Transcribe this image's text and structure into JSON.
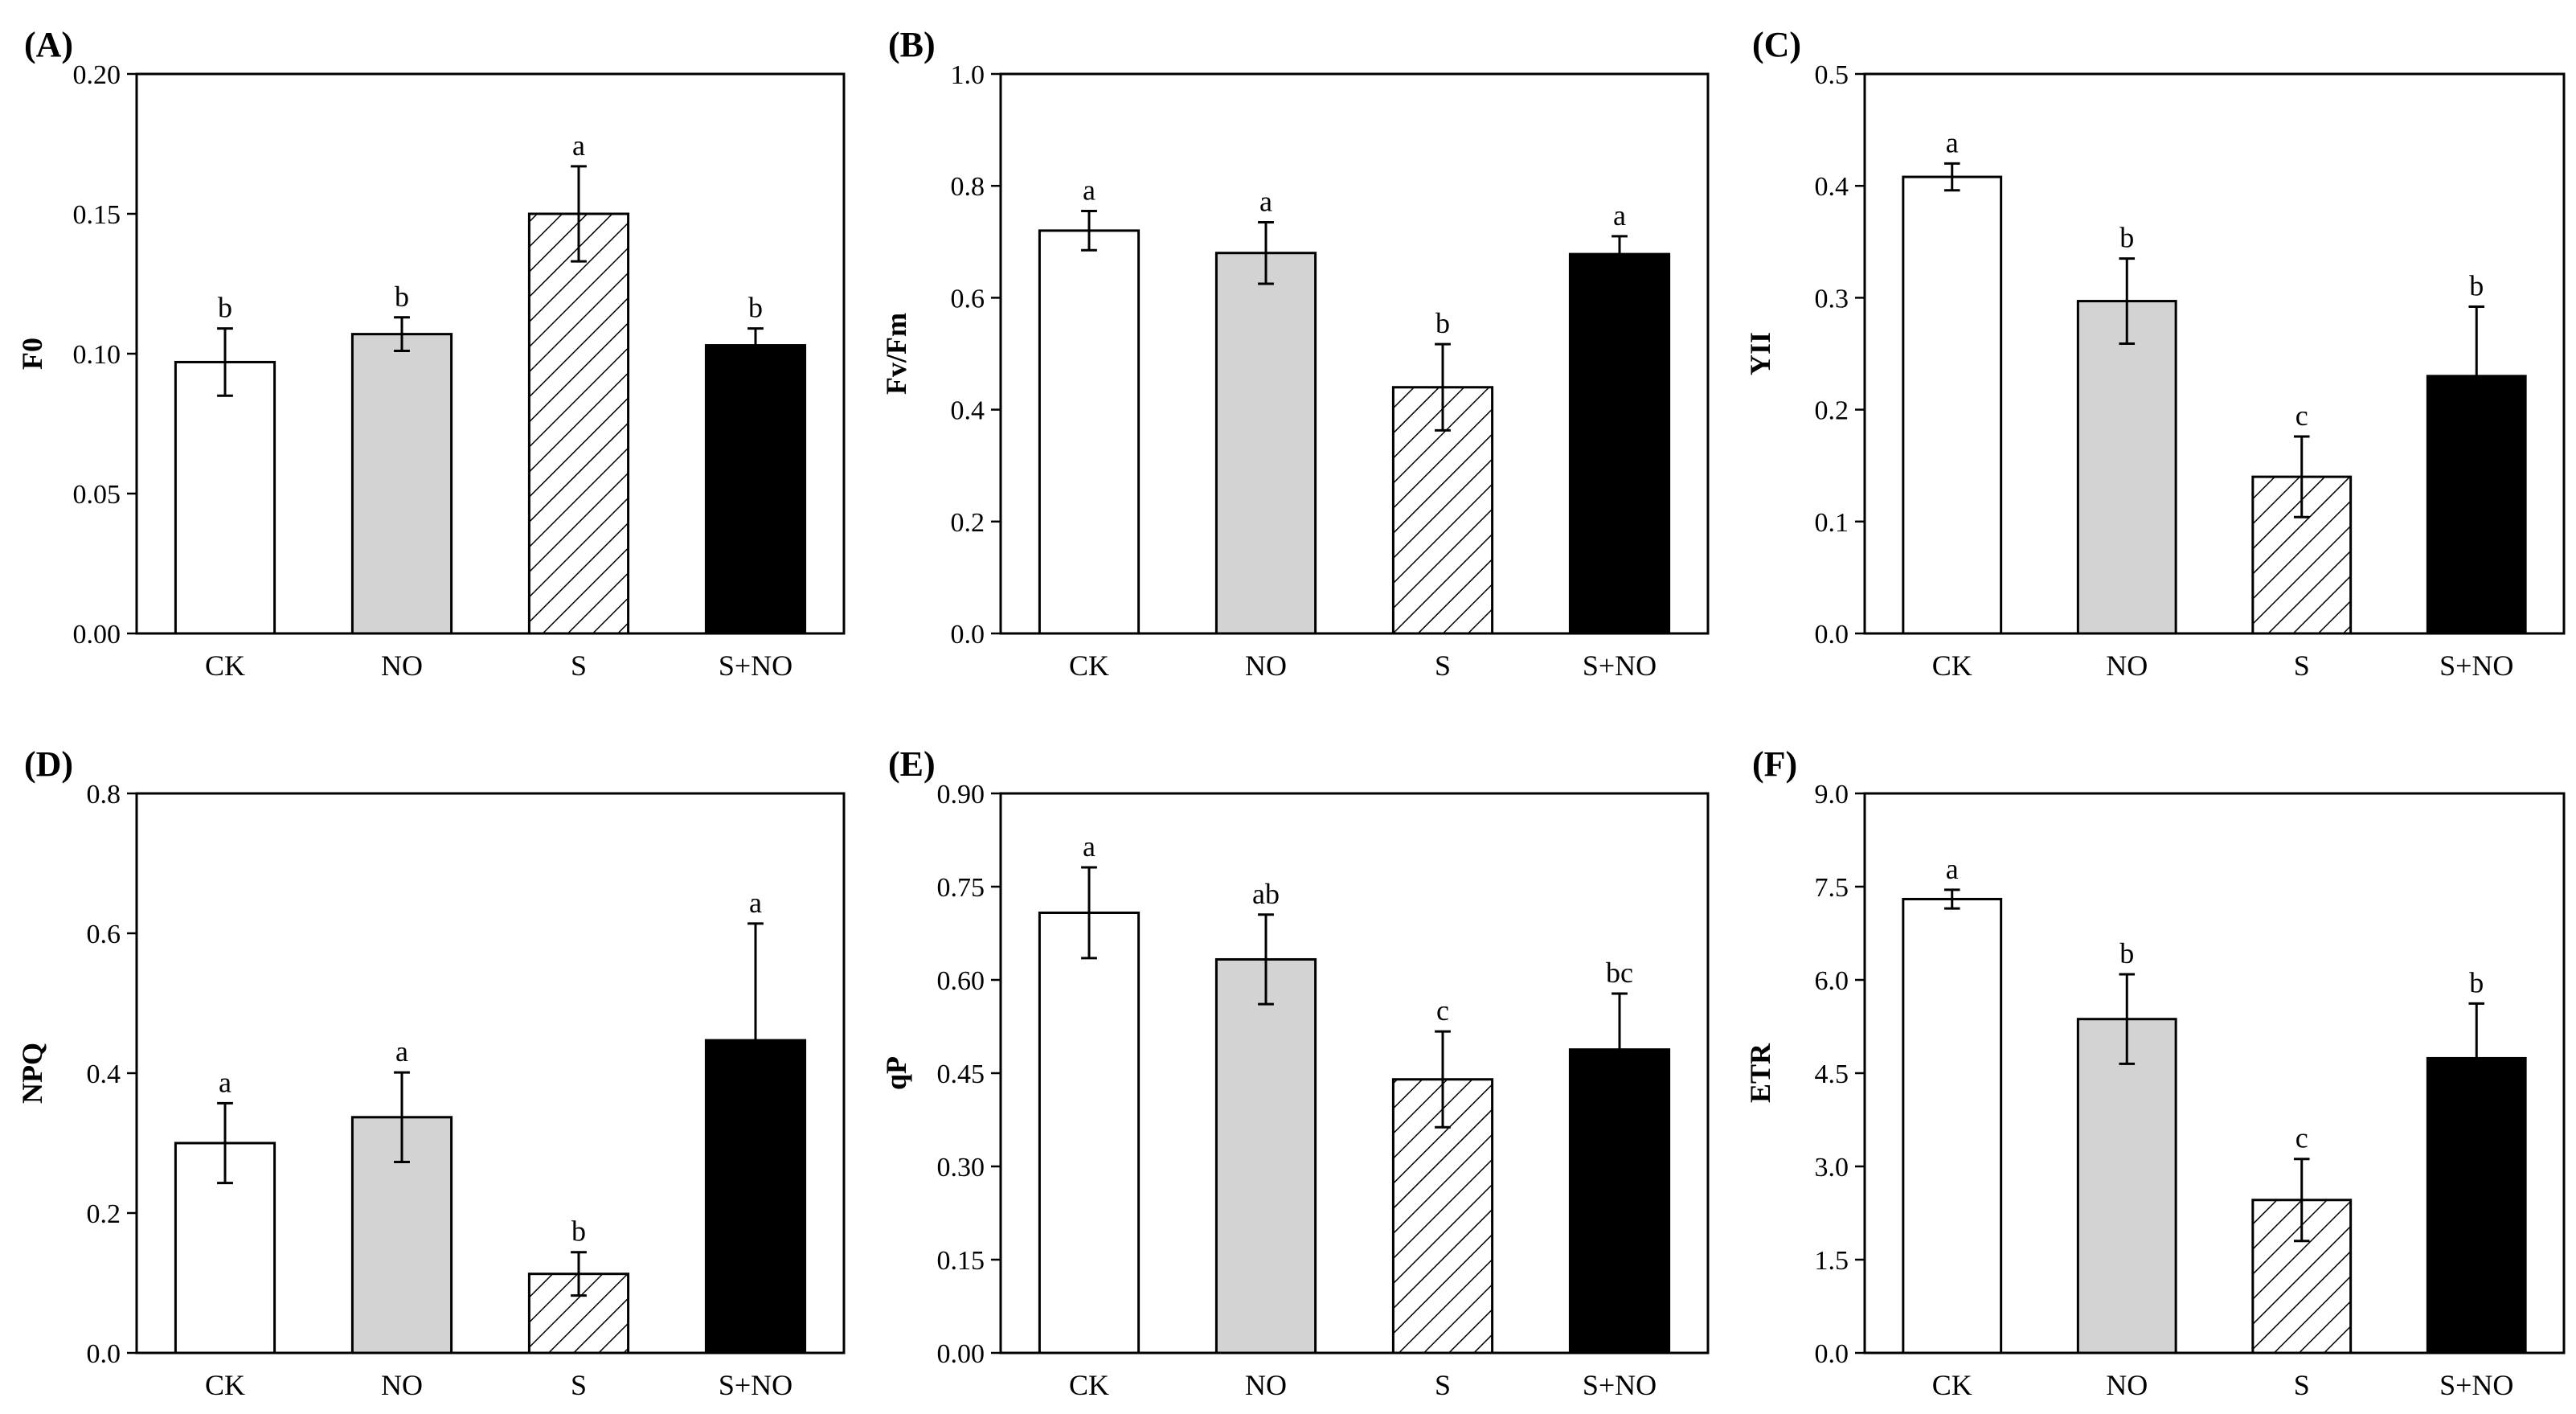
{
  "chart_data": [
    {
      "type": "bar",
      "panel_label": "(A)",
      "ylabel": "F0",
      "categories": [
        "CK",
        "NO",
        "S",
        "S+NO"
      ],
      "values": [
        0.097,
        0.107,
        0.15,
        0.103
      ],
      "errors": [
        0.012,
        0.006,
        0.017,
        0.006
      ],
      "significance": [
        "b",
        "b",
        "a",
        "b"
      ],
      "ylim": [
        0,
        0.2
      ],
      "yticks": [
        "0.00",
        "0.05",
        "0.10",
        "0.15",
        "0.20"
      ],
      "fills": [
        "#ffffff",
        "#d3d3d3",
        "hatch",
        "#000000"
      ]
    },
    {
      "type": "bar",
      "panel_label": "(B)",
      "ylabel": "Fv/Fm",
      "categories": [
        "CK",
        "NO",
        "S",
        "S+NO"
      ],
      "values": [
        0.72,
        0.68,
        0.44,
        0.678
      ],
      "errors": [
        0.035,
        0.055,
        0.077,
        0.032
      ],
      "significance": [
        "a",
        "a",
        "b",
        "a"
      ],
      "ylim": [
        0,
        1.0
      ],
      "yticks": [
        "0.0",
        "0.2",
        "0.4",
        "0.6",
        "0.8",
        "1.0"
      ],
      "fills": [
        "#ffffff",
        "#d3d3d3",
        "hatch",
        "#000000"
      ]
    },
    {
      "type": "bar",
      "panel_label": "(C)",
      "ylabel": "YII",
      "categories": [
        "CK",
        "NO",
        "S",
        "S+NO"
      ],
      "values": [
        0.408,
        0.297,
        0.14,
        0.23
      ],
      "errors": [
        0.012,
        0.038,
        0.036,
        0.062
      ],
      "significance": [
        "a",
        "b",
        "c",
        "b"
      ],
      "ylim": [
        0,
        0.5
      ],
      "yticks": [
        "0.0",
        "0.1",
        "0.2",
        "0.3",
        "0.4",
        "0.5"
      ],
      "fills": [
        "#ffffff",
        "#d3d3d3",
        "hatch",
        "#000000"
      ]
    },
    {
      "type": "bar",
      "panel_label": "(D)",
      "ylabel": "NPQ",
      "categories": [
        "CK",
        "NO",
        "S",
        "S+NO"
      ],
      "values": [
        0.3,
        0.337,
        0.113,
        0.447
      ],
      "errors": [
        0.057,
        0.064,
        0.031,
        0.167
      ],
      "significance": [
        "a",
        "a",
        "b",
        "a"
      ],
      "ylim": [
        0,
        0.8
      ],
      "yticks": [
        "0.0",
        "0.2",
        "0.4",
        "0.6",
        "0.8"
      ],
      "fills": [
        "#ffffff",
        "#d3d3d3",
        "hatch",
        "#000000"
      ]
    },
    {
      "type": "bar",
      "panel_label": "(E)",
      "ylabel": "qP",
      "categories": [
        "CK",
        "NO",
        "S",
        "S+NO"
      ],
      "values": [
        0.708,
        0.633,
        0.44,
        0.488
      ],
      "errors": [
        0.073,
        0.072,
        0.077,
        0.09
      ],
      "significance": [
        "a",
        "ab",
        "c",
        "bc"
      ],
      "ylim": [
        0,
        0.9
      ],
      "yticks": [
        "0.00",
        "0.15",
        "0.30",
        "0.45",
        "0.60",
        "0.75",
        "0.90"
      ],
      "fills": [
        "#ffffff",
        "#d3d3d3",
        "hatch",
        "#000000"
      ]
    },
    {
      "type": "bar",
      "panel_label": "(F)",
      "ylabel": "ETR",
      "categories": [
        "CK",
        "NO",
        "S",
        "S+NO"
      ],
      "values": [
        7.3,
        5.37,
        2.46,
        4.74
      ],
      "errors": [
        0.15,
        0.72,
        0.66,
        0.88
      ],
      "significance": [
        "a",
        "b",
        "c",
        "b"
      ],
      "ylim": [
        0,
        9.0
      ],
      "yticks": [
        "0.0",
        "1.5",
        "3.0",
        "4.5",
        "6.0",
        "7.5",
        "9.0"
      ],
      "fills": [
        "#ffffff",
        "#d3d3d3",
        "hatch",
        "#000000"
      ]
    }
  ]
}
